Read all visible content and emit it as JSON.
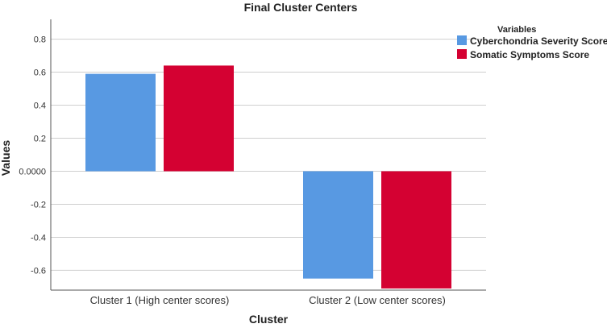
{
  "chart_data": {
    "type": "bar",
    "title": "Final Cluster Centers",
    "xlabel": "Cluster",
    "ylabel": "Values",
    "categories": [
      "Cluster 1 (High center scores)",
      "Cluster 2 (Low center scores)"
    ],
    "series": [
      {
        "name": "Cyberchondria Severity Score",
        "values": [
          0.59,
          -0.65
        ],
        "color": "#5899e2"
      },
      {
        "name": "Somatic Symptoms Score",
        "values": [
          0.64,
          -0.71
        ],
        "color": "#d40132"
      }
    ],
    "ylim": [
      -0.72,
      0.92
    ],
    "yticks": [
      0.8,
      0.6,
      0.4,
      0.2,
      0,
      -0.2,
      -0.4,
      -0.6
    ],
    "ytick_labels": [
      "0.8",
      "0.6",
      "0.4",
      "0.2",
      "0.0000",
      "-0.2",
      "-0.4",
      "-0.6"
    ],
    "grid": true,
    "legend": {
      "title": "Variables",
      "placement": "top-right"
    }
  }
}
